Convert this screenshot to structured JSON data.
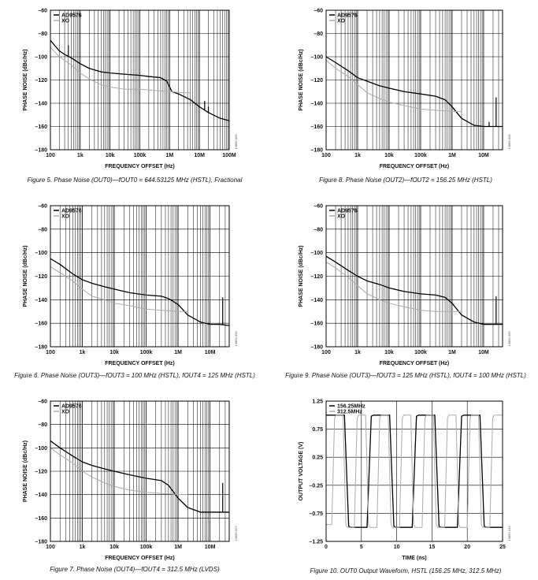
{
  "chart_data": [
    {
      "type": "line",
      "caption": "Figure 5. Phase Noise (OUT0)—fOUT0 = 644.53125 MHz (HSTL), Fractional",
      "side_code": "13865-005",
      "xlabel": "FREQUENCY OFFSET (Hz)",
      "ylabel": "PHASE NOISE (dBc/Hz)",
      "x_scale": "log",
      "xlim": [
        100,
        100000000
      ],
      "ylim": [
        -180,
        -60
      ],
      "x_ticks": [
        "100",
        "1k",
        "10k",
        "100k",
        "1M",
        "10M",
        "100M"
      ],
      "y_ticks": [
        "–60",
        "–80",
        "–100",
        "–120",
        "–140",
        "–160",
        "–180"
      ],
      "grid": true,
      "legend_position": "top-left",
      "series": [
        {
          "name": "AD9576",
          "color": "#000000",
          "x": [
            100,
            200,
            300,
            500,
            1000,
            2000,
            5000,
            10000,
            30000,
            100000,
            200000,
            500000,
            800000,
            1000000,
            1200000,
            2000000,
            5000000,
            10000000,
            20000000,
            50000000,
            100000000
          ],
          "y": [
            -86,
            -95,
            -98,
            -101,
            -106,
            -110,
            -113,
            -114,
            -115,
            -116,
            -117,
            -118,
            -121,
            -126,
            -130,
            -132,
            -137,
            -143,
            -148,
            -153,
            -155
          ]
        },
        {
          "name": "XO",
          "color": "#aaaaaa",
          "x": [
            100,
            200,
            500,
            1000,
            2000,
            5000,
            10000,
            30000,
            100000,
            300000,
            1000000,
            3000000,
            5000000
          ],
          "y": [
            -92,
            -100,
            -107,
            -114,
            -119,
            -124,
            -126,
            -128,
            -128,
            -129,
            -130,
            -131,
            -131
          ]
        }
      ],
      "spur_series": 0,
      "spurs": [
        {
          "x": 400,
          "y": -90
        },
        {
          "x": 15000000,
          "y": -138
        },
        {
          "x": 20000000,
          "y": -143
        }
      ]
    },
    {
      "type": "line",
      "caption": "Figure 6. Phase Noise (OUT3)—fOUT3 = 100 MHz (HSTL), fOUT4 = 125 MHz (HSTL)",
      "side_code": "13865-006",
      "xlabel": "FREQUENCY OFFSET (Hz)",
      "ylabel": "PHASE NOISE (dBc/Hz)",
      "x_scale": "log",
      "xlim": [
        100,
        40000000
      ],
      "ylim": [
        -180,
        -60
      ],
      "x_ticks": [
        "100",
        "1k",
        "10k",
        "100k",
        "1M",
        "10M"
      ],
      "y_ticks": [
        "–60",
        "–80",
        "–100",
        "–120",
        "–140",
        "–160",
        "–180"
      ],
      "grid": true,
      "legend_position": "top-left",
      "series": [
        {
          "name": "AD9576",
          "color": "#000000",
          "x": [
            100,
            200,
            500,
            1000,
            2000,
            5000,
            10000,
            30000,
            100000,
            300000,
            500000,
            1000000,
            2000000,
            5000000,
            10000000,
            20000000,
            40000000
          ],
          "y": [
            -105,
            -110,
            -118,
            -123,
            -126,
            -129,
            -131,
            -134,
            -136,
            -137,
            -139,
            -144,
            -153,
            -159,
            -161,
            -161,
            -162
          ]
        },
        {
          "name": "XO",
          "color": "#aaaaaa",
          "x": [
            100,
            200,
            500,
            1000,
            2000,
            5000,
            10000,
            30000,
            100000,
            300000,
            1000000,
            2000000
          ],
          "y": [
            -112,
            -117,
            -124,
            -131,
            -137,
            -140,
            -143,
            -145,
            -148,
            -149,
            -150,
            -150
          ]
        }
      ],
      "spur_series": 0,
      "spurs": [
        {
          "x": 25000000,
          "y": -138
        }
      ]
    },
    {
      "type": "line",
      "caption": "Figure 7. Phase Noise (OUT4)—fOUT4 = 312.5 MHz (LVDS)",
      "side_code": "13865-007",
      "xlabel": "FREQUENCY OFFSET (Hz)",
      "ylabel": "PHASE NOISE (dBc/Hz)",
      "x_scale": "log",
      "xlim": [
        100,
        40000000
      ],
      "ylim": [
        -180,
        -60
      ],
      "x_ticks": [
        "100",
        "1k",
        "10k",
        "100k",
        "1M",
        "10M"
      ],
      "y_ticks": [
        "–60",
        "–80",
        "–100",
        "–120",
        "–140",
        "–160",
        "–180"
      ],
      "grid": true,
      "legend_position": "top-left",
      "series": [
        {
          "name": "AD9576",
          "color": "#000000",
          "x": [
            100,
            200,
            500,
            1000,
            2000,
            5000,
            10000,
            30000,
            100000,
            300000,
            500000,
            1000000,
            2000000,
            5000000,
            10000000,
            20000000,
            40000000
          ],
          "y": [
            -94,
            -100,
            -107,
            -112,
            -115,
            -118,
            -120,
            -123,
            -126,
            -128,
            -132,
            -143,
            -151,
            -155,
            -155,
            -155,
            -155
          ]
        },
        {
          "name": "XO",
          "color": "#aaaaaa",
          "x": [
            100,
            200,
            500,
            1000,
            2000,
            5000,
            10000,
            30000,
            100000,
            300000,
            1000000,
            2000000
          ],
          "y": [
            -100,
            -106,
            -113,
            -120,
            -125,
            -130,
            -133,
            -136,
            -138,
            -139,
            -140,
            -140
          ]
        }
      ],
      "spur_series": 0,
      "spurs": [
        {
          "x": 25000000,
          "y": -130
        }
      ]
    },
    {
      "type": "line",
      "caption": "Figure 8. Phase Noise (OUT2)—fOUT2 = 156.25 MHz (HSTL)",
      "side_code": "13865-008",
      "xlabel": "FREQUENCY OFFSET (Hz)",
      "ylabel": "PHASE NOISE (dBc/Hz)",
      "x_scale": "log",
      "xlim": [
        100,
        40000000
      ],
      "ylim": [
        -180,
        -60
      ],
      "x_ticks": [
        "100",
        "1k",
        "10k",
        "100k",
        "1M",
        "10M"
      ],
      "y_ticks": [
        "–60",
        "–80",
        "–100",
        "–120",
        "–140",
        "–160",
        "–180"
      ],
      "grid": true,
      "legend_position": "top-left",
      "series": [
        {
          "name": "AD9576",
          "color": "#000000",
          "x": [
            100,
            200,
            500,
            1000,
            2000,
            5000,
            10000,
            30000,
            100000,
            300000,
            600000,
            1000000,
            2000000,
            5000000,
            10000000,
            20000000,
            40000000
          ],
          "y": [
            -100,
            -105,
            -112,
            -118,
            -121,
            -125,
            -127,
            -130,
            -132,
            -134,
            -137,
            -143,
            -153,
            -159,
            -160,
            -160,
            -160
          ]
        },
        {
          "name": "XO",
          "color": "#aaaaaa",
          "x": [
            100,
            200,
            500,
            1000,
            2000,
            5000,
            10000,
            30000,
            100000,
            300000,
            1000000,
            2000000
          ],
          "y": [
            -103,
            -110,
            -117,
            -124,
            -131,
            -136,
            -139,
            -142,
            -145,
            -146,
            -147,
            -147
          ]
        }
      ],
      "spur_series": 0,
      "spurs": [
        {
          "x": 15000000,
          "y": -156
        },
        {
          "x": 25000000,
          "y": -135
        }
      ]
    },
    {
      "type": "line",
      "caption": "Figure 9. Phase Noise (OUT3)—fOUT3 = 125 MHz (HSTL), fOUT4 = 100 MHz (HSTL)",
      "side_code": "13865-009",
      "xlabel": "FREQUENCY OFFSET (Hz)",
      "ylabel": "PHASE NOISE (dBc/Hz)",
      "x_scale": "log",
      "xlim": [
        100,
        40000000
      ],
      "ylim": [
        -180,
        -60
      ],
      "x_ticks": [
        "100",
        "1k",
        "10k",
        "100k",
        "1M",
        "10M"
      ],
      "y_ticks": [
        "–60",
        "–80",
        "–100",
        "–120",
        "–140",
        "–160",
        "–180"
      ],
      "grid": true,
      "legend_position": "top-left",
      "series": [
        {
          "name": "AD9576",
          "color": "#000000",
          "x": [
            100,
            200,
            500,
            1000,
            2000,
            5000,
            10000,
            30000,
            100000,
            300000,
            600000,
            1000000,
            2000000,
            5000000,
            10000000,
            20000000,
            40000000
          ],
          "y": [
            -103,
            -108,
            -115,
            -120,
            -124,
            -127,
            -130,
            -133,
            -135,
            -136,
            -138,
            -143,
            -153,
            -159,
            -161,
            -161,
            -161
          ]
        },
        {
          "name": "XO",
          "color": "#aaaaaa",
          "x": [
            100,
            200,
            500,
            1000,
            2000,
            5000,
            10000,
            30000,
            100000,
            300000,
            1000000,
            2000000
          ],
          "y": [
            -108,
            -113,
            -121,
            -128,
            -135,
            -140,
            -143,
            -146,
            -149,
            -150,
            -150,
            -150
          ]
        }
      ],
      "spur_series": 0,
      "spurs": [
        {
          "x": 25000000,
          "y": -137
        }
      ]
    },
    {
      "type": "line",
      "caption": "Figure 10. OUT0 Output Waveform, HSTL (156.25 MHz, 312.5 MHz)",
      "side_code": "13865-010",
      "xlabel": "TIME (ns)",
      "ylabel": "OUTPUT VOLTAGE (V)",
      "x_scale": "linear",
      "xlim": [
        0,
        25
      ],
      "ylim": [
        -1.25,
        1.25
      ],
      "x_ticks": [
        "0",
        "5",
        "10",
        "15",
        "20",
        "25"
      ],
      "y_ticks": [
        "1.25",
        "0.75",
        "0.25",
        "–0.25",
        "–0.75",
        "–1.25"
      ],
      "grid": true,
      "legend_position": "top-left",
      "series": [
        {
          "name": "156.25MHz",
          "color": "#000000",
          "x": [
            0,
            2.6,
            2.9,
            3.2,
            3.5,
            5.8,
            6.1,
            6.4,
            6.7,
            9.0,
            9.3,
            9.6,
            9.9,
            12.2,
            12.5,
            12.8,
            13.1,
            15.4,
            15.7,
            16.0,
            16.3,
            18.6,
            18.9,
            19.2,
            19.5,
            21.8,
            22.1,
            22.4,
            22.7,
            25
          ],
          "y": [
            1.0,
            1.0,
            0.0,
            -0.98,
            -1.0,
            -1.0,
            0.0,
            0.98,
            1.0,
            1.0,
            0.0,
            -0.98,
            -1.0,
            -1.0,
            0.0,
            0.98,
            1.0,
            1.0,
            0.0,
            -0.98,
            -1.0,
            -1.0,
            0.0,
            0.98,
            1.0,
            1.0,
            0.0,
            -0.98,
            -1.0,
            -1.0
          ]
        },
        {
          "name": "312.5MHz",
          "color": "#aaaaaa",
          "x": [
            0,
            0.8,
            1.0,
            1.2,
            1.4,
            2.4,
            2.6,
            2.8,
            3.0,
            4.0,
            4.2,
            4.4,
            4.6,
            5.6,
            5.8,
            6.0,
            6.2,
            7.2,
            7.4,
            7.6,
            7.8,
            8.8,
            9.0,
            9.2,
            9.4,
            10.4,
            10.6,
            10.8,
            11.0,
            12.0,
            12.2,
            12.4,
            12.6,
            13.6,
            13.8,
            14.0,
            14.2,
            15.2,
            15.4,
            15.6,
            15.8,
            16.8,
            17.0,
            17.2,
            17.4,
            18.4,
            18.6,
            18.8,
            19.0,
            20.0,
            20.2,
            20.4,
            20.6,
            21.6,
            21.8,
            22.0,
            22.2,
            23.2,
            23.4,
            23.6,
            23.8,
            25
          ],
          "y": [
            -0.95,
            -0.95,
            0.0,
            0.95,
            1.0,
            1.0,
            0.0,
            -0.95,
            -1.0,
            -1.0,
            0.0,
            0.95,
            1.0,
            1.0,
            0.0,
            -0.95,
            -1.0,
            -1.0,
            0.0,
            0.95,
            1.0,
            1.0,
            0.0,
            -0.95,
            -1.0,
            -1.0,
            0.0,
            0.95,
            1.0,
            1.0,
            0.0,
            -0.95,
            -1.0,
            -1.0,
            0.0,
            0.95,
            1.0,
            1.0,
            0.0,
            -0.95,
            -1.0,
            -1.0,
            0.0,
            0.95,
            1.0,
            1.0,
            0.0,
            -0.95,
            -1.0,
            -1.0,
            0.0,
            0.95,
            1.0,
            1.0,
            0.0,
            -0.95,
            -1.0,
            -1.0,
            0.0,
            0.95,
            1.0,
            1.0
          ]
        }
      ]
    }
  ]
}
